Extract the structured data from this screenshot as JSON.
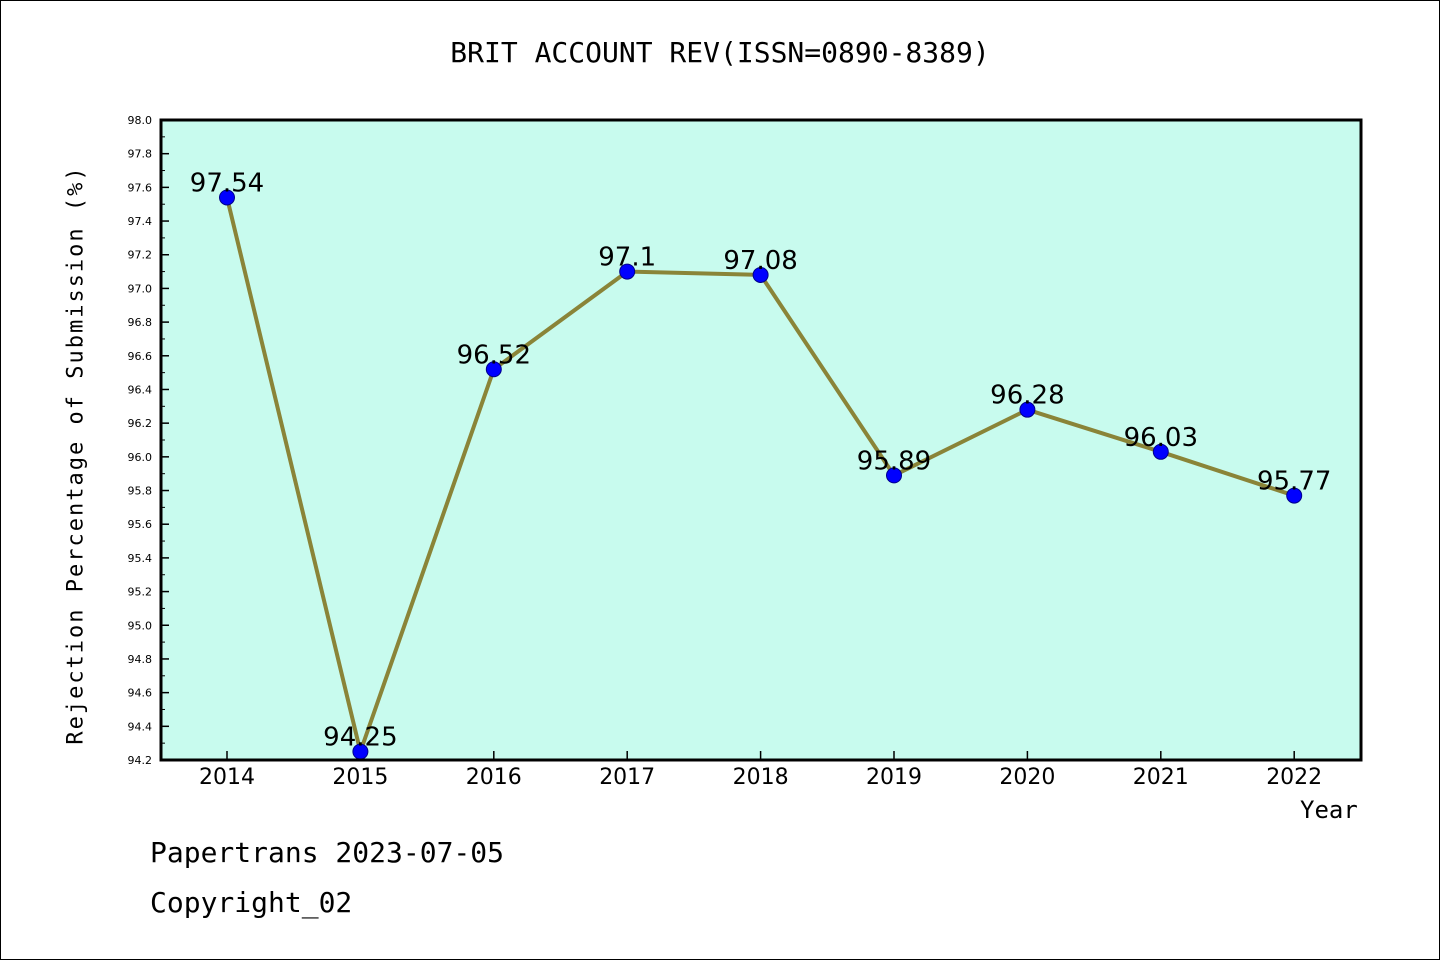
{
  "chart_data": {
    "type": "line",
    "title": "BRIT ACCOUNT REV(ISSN=0890-8389)",
    "xlabel": "Year",
    "ylabel": "Rejection Percentage of Submission (%)",
    "x": [
      "2014",
      "2015",
      "2016",
      "2017",
      "2018",
      "2019",
      "2020",
      "2021",
      "2022"
    ],
    "series": [
      {
        "values": [
          97.54,
          94.25,
          96.52,
          97.1,
          97.08,
          95.89,
          96.28,
          96.03,
          95.77
        ]
      }
    ],
    "data_labels": [
      "97.54",
      "94.25",
      "96.52",
      "97.1",
      "97.08",
      "95.89",
      "96.28",
      "96.03",
      "95.77"
    ],
    "ylim": [
      94.2,
      98.0
    ],
    "yticks": [
      "94.2",
      "94.4",
      "94.6",
      "94.8",
      "95.0",
      "95.2",
      "95.4",
      "95.6",
      "95.8",
      "96.0",
      "96.2",
      "96.4",
      "96.6",
      "96.8",
      "97.0",
      "97.2",
      "97.4",
      "97.6",
      "97.8",
      "98.0"
    ],
    "grid": false,
    "colors": {
      "plot_background": "#c8fbee",
      "line": "#8a8438",
      "marker": "#0000ff"
    }
  },
  "footer": {
    "line1": "Papertrans 2023-07-05",
    "line2": "Copyright_02"
  }
}
